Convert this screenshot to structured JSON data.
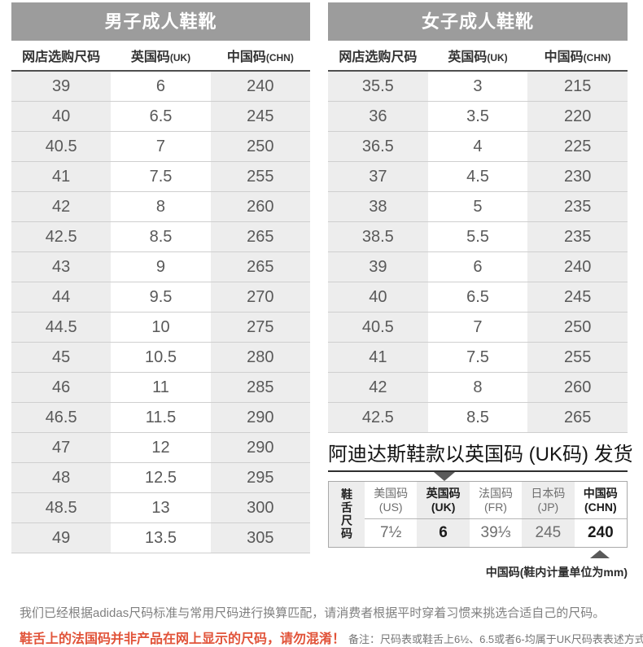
{
  "colors": {
    "banner_gray": "#9c9c9c",
    "column_shade": "#ededed",
    "warning_red": "#e15339"
  },
  "men_table": {
    "title": "男子成人鞋靴",
    "headers": [
      {
        "zh": "网店选购尺码",
        "suffix": ""
      },
      {
        "zh": "英国码",
        "suffix": "(UK)"
      },
      {
        "zh": "中国码",
        "suffix": "(CHN)"
      }
    ],
    "rows": [
      [
        "39",
        "6",
        "240"
      ],
      [
        "40",
        "6.5",
        "245"
      ],
      [
        "40.5",
        "7",
        "250"
      ],
      [
        "41",
        "7.5",
        "255"
      ],
      [
        "42",
        "8",
        "260"
      ],
      [
        "42.5",
        "8.5",
        "265"
      ],
      [
        "43",
        "9",
        "265"
      ],
      [
        "44",
        "9.5",
        "270"
      ],
      [
        "44.5",
        "10",
        "275"
      ],
      [
        "45",
        "10.5",
        "280"
      ],
      [
        "46",
        "11",
        "285"
      ],
      [
        "46.5",
        "11.5",
        "290"
      ],
      [
        "47",
        "12",
        "290"
      ],
      [
        "48",
        "12.5",
        "295"
      ],
      [
        "48.5",
        "13",
        "300"
      ],
      [
        "49",
        "13.5",
        "305"
      ]
    ]
  },
  "women_table": {
    "title": "女子成人鞋靴",
    "headers": [
      {
        "zh": "网店选购尺码",
        "suffix": ""
      },
      {
        "zh": "英国码",
        "suffix": "(UK)"
      },
      {
        "zh": "中国码",
        "suffix": "(CHN)"
      }
    ],
    "rows": [
      [
        "35.5",
        "3",
        "215"
      ],
      [
        "36",
        "3.5",
        "220"
      ],
      [
        "36.5",
        "4",
        "225"
      ],
      [
        "37",
        "4.5",
        "230"
      ],
      [
        "38",
        "5",
        "235"
      ],
      [
        "38.5",
        "5.5",
        "235"
      ],
      [
        "39",
        "6",
        "240"
      ],
      [
        "40",
        "6.5",
        "245"
      ],
      [
        "40.5",
        "7",
        "250"
      ],
      [
        "41",
        "7.5",
        "255"
      ],
      [
        "42",
        "8",
        "260"
      ],
      [
        "42.5",
        "8.5",
        "265"
      ]
    ]
  },
  "shipping": {
    "heading": "阿迪达斯鞋款以英国码 (UK码) 发货"
  },
  "tongue_table": {
    "label": "鞋舌尺码",
    "columns": [
      {
        "name": "美国码",
        "code": "(US)",
        "value": "7½",
        "highlight": false
      },
      {
        "name": "英国码",
        "code": "(UK)",
        "value": "6",
        "highlight": true
      },
      {
        "name": "法国码",
        "code": "(FR)",
        "value": "39⅓",
        "highlight": false
      },
      {
        "name": "日本码",
        "code": "(JP)",
        "value": "245",
        "highlight": false
      },
      {
        "name": "中国码",
        "code": "(CHN)",
        "value": "240",
        "highlight": true
      }
    ]
  },
  "chn_note": "中国码(鞋内计量单位为mm)",
  "footer": {
    "line1": "我们已经根据adidas尺码标准与常用尺码进行换算匹配，请消费者根据平时穿着习惯来挑选合适自己的尺码。",
    "warning": "鞋舌上的法国码并非产品在网上显示的尺码，请勿混淆！",
    "remark": "备注：尺码表或鞋舌上6½、6.5或者6-均属于UK尺码表表述方式"
  }
}
